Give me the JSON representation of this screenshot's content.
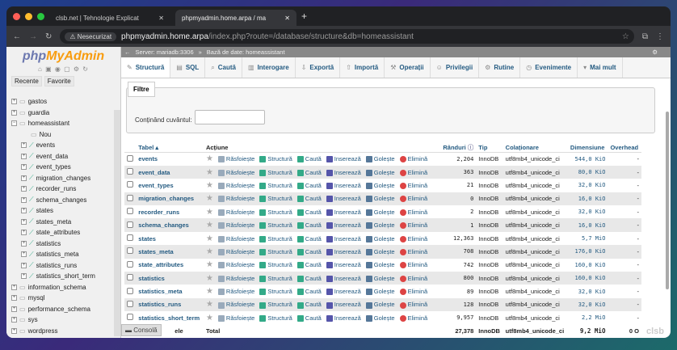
{
  "browser": {
    "tabs": [
      {
        "title": "clsb.net | Tehnologie Explicat"
      },
      {
        "title": "phpmyadmin.home.arpa / ma"
      }
    ],
    "security": "Nesecurizat",
    "url_host": "phpmyadmin.home.arpa",
    "url_path": "/index.php?route=/database/structure&db=homeassistant"
  },
  "sidebar": {
    "logo": "phpMyAdmin",
    "recent": "Recente",
    "favorites": "Favorite",
    "dbs_before": [
      "gastos",
      "guardia"
    ],
    "open_db": "homeassistant",
    "new": "Nou",
    "tables": [
      "events",
      "event_data",
      "event_types",
      "migration_changes",
      "recorder_runs",
      "schema_changes",
      "states",
      "states_meta",
      "state_attributes",
      "statistics",
      "statistics_meta",
      "statistics_runs",
      "statistics_short_term"
    ],
    "dbs_after": [
      "information_schema",
      "mysql",
      "performance_schema",
      "sys",
      "wordpress"
    ]
  },
  "breadcrumb": {
    "server": "Server: mariadb:3306",
    "db": "Bază de date: homeassistant"
  },
  "tabs": [
    "Structură",
    "SQL",
    "Caută",
    "Interogare",
    "Exportă",
    "Importă",
    "Operații",
    "Privilegii",
    "Rutine",
    "Evenimente",
    "Mai mult"
  ],
  "filter": {
    "legend": "Filtre",
    "label": "Conținând cuvântul:",
    "value": ""
  },
  "table": {
    "headers": [
      "Tabel",
      "Acțiune",
      "Rânduri",
      "Tip",
      "Colaționare",
      "Dimensiune",
      "Overhead"
    ],
    "actions": [
      "Răsfoiește",
      "Structură",
      "Caută",
      "Inserează",
      "Golește",
      "Elimină"
    ],
    "rows": [
      [
        "events",
        "2,204",
        "InnoDB",
        "utf8mb4_unicode_ci",
        "544,0 KiO",
        "-"
      ],
      [
        "event_data",
        "363",
        "InnoDB",
        "utf8mb4_unicode_ci",
        "80,0 KiO",
        "-"
      ],
      [
        "event_types",
        "21",
        "InnoDB",
        "utf8mb4_unicode_ci",
        "32,0 KiO",
        "-"
      ],
      [
        "migration_changes",
        "0",
        "InnoDB",
        "utf8mb4_unicode_ci",
        "16,0 KiO",
        "-"
      ],
      [
        "recorder_runs",
        "2",
        "InnoDB",
        "utf8mb4_unicode_ci",
        "32,0 KiO",
        "-"
      ],
      [
        "schema_changes",
        "1",
        "InnoDB",
        "utf8mb4_unicode_ci",
        "16,0 KiO",
        "-"
      ],
      [
        "states",
        "12,363",
        "InnoDB",
        "utf8mb4_unicode_ci",
        "5,7 MiO",
        "-"
      ],
      [
        "states_meta",
        "708",
        "InnoDB",
        "utf8mb4_unicode_ci",
        "176,0 KiO",
        "-"
      ],
      [
        "state_attributes",
        "742",
        "InnoDB",
        "utf8mb4_unicode_ci",
        "160,0 KiO",
        "-"
      ],
      [
        "statistics",
        "800",
        "InnoDB",
        "utf8mb4_unicode_ci",
        "160,0 KiO",
        "-"
      ],
      [
        "statistics_meta",
        "89",
        "InnoDB",
        "utf8mb4_unicode_ci",
        "32,0 KiO",
        "-"
      ],
      [
        "statistics_runs",
        "128",
        "InnoDB",
        "utf8mb4_unicode_ci",
        "32,0 KiO",
        "-"
      ],
      [
        "statistics_short_term",
        "9,957",
        "InnoDB",
        "utf8mb4_unicode_ci",
        "2,2 MiO",
        "-"
      ]
    ],
    "total": {
      "name": "ele",
      "label": "Total",
      "rows": "27,378",
      "type": "InnoDB",
      "collation": "utf8mb4_unicode_ci",
      "size": "9,2 MiO",
      "overhead": "0 O"
    }
  },
  "console": "Consolă",
  "watermark": "clsb"
}
